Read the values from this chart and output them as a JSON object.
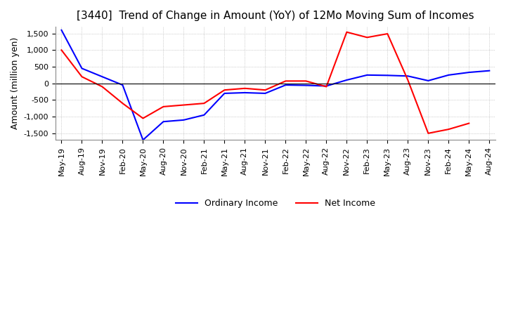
{
  "title": "[3440]  Trend of Change in Amount (YoY) of 12Mo Moving Sum of Incomes",
  "ylabel": "Amount (million yen)",
  "x_labels": [
    "May-19",
    "Aug-19",
    "Nov-19",
    "Feb-20",
    "May-20",
    "Aug-20",
    "Nov-20",
    "Feb-21",
    "May-21",
    "Aug-21",
    "Nov-21",
    "Feb-22",
    "May-22",
    "Aug-22",
    "Nov-22",
    "Feb-23",
    "May-23",
    "Aug-23",
    "Nov-23",
    "Feb-24",
    "May-24",
    "Aug-24"
  ],
  "ordinary_income": [
    1600,
    450,
    200,
    -50,
    -1700,
    -1150,
    -1100,
    -950,
    -300,
    -280,
    -300,
    -50,
    -60,
    -80,
    100,
    250,
    240,
    220,
    80,
    250,
    330,
    380
  ],
  "net_income": [
    1000,
    200,
    -100,
    -600,
    -1050,
    -700,
    -650,
    -600,
    -200,
    -150,
    -200,
    70,
    70,
    -100,
    1540,
    1380,
    1490,
    100,
    -1500,
    -1380,
    -1200,
    null
  ],
  "ylim": [
    -1700,
    1700
  ],
  "yticks": [
    -1500,
    -1000,
    -500,
    0,
    500,
    1000,
    1500
  ],
  "ordinary_color": "#0000ff",
  "net_color": "#ff0000",
  "grid_color": "#aaaaaa",
  "background_color": "#ffffff",
  "title_fontsize": 11,
  "tick_fontsize": 8,
  "ylabel_fontsize": 9,
  "legend_labels": [
    "Ordinary Income",
    "Net Income"
  ],
  "legend_fontsize": 9,
  "linewidth": 1.5
}
